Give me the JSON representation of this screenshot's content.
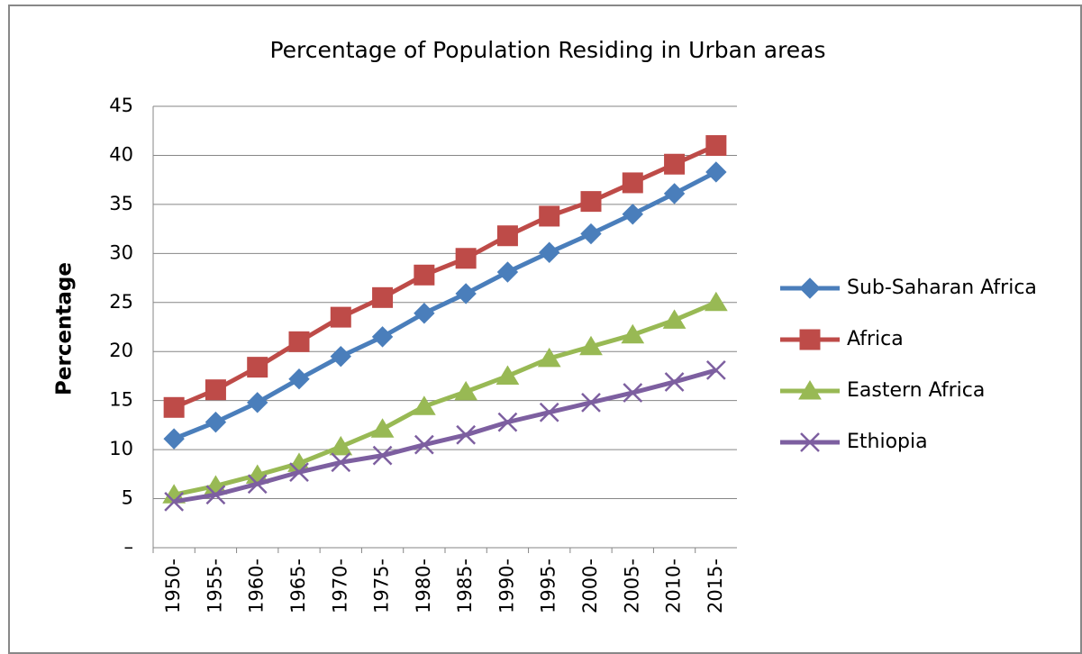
{
  "chart_data": {
    "type": "line",
    "title": "Percentage of Population Residing in Urban areas",
    "y_label": "Percentage",
    "categories": [
      "1950-",
      "1955-",
      "1960-",
      "1965-",
      "1970-",
      "1975-",
      "1980-",
      "1985-",
      "1990-",
      "1995-",
      "2000-",
      "2005-",
      "2010-",
      "2015-"
    ],
    "series": [
      {
        "name": "Sub-Saharan Africa",
        "color": "#4a7ebb",
        "marker": "diamond",
        "values": [
          11.1,
          12.8,
          14.8,
          17.2,
          19.5,
          21.5,
          23.9,
          25.9,
          28.1,
          30.1,
          32.0,
          34.0,
          36.1,
          38.3
        ]
      },
      {
        "name": "Africa",
        "color": "#be4b48",
        "marker": "square",
        "values": [
          14.3,
          16.1,
          18.4,
          21.0,
          23.5,
          25.5,
          27.8,
          29.5,
          31.8,
          33.8,
          35.3,
          37.2,
          39.1,
          41.0
        ]
      },
      {
        "name": "Eastern Africa",
        "color": "#98b954",
        "marker": "triangle",
        "values": [
          5.4,
          6.3,
          7.4,
          8.6,
          10.3,
          12.1,
          14.4,
          15.9,
          17.5,
          19.3,
          20.5,
          21.7,
          23.2,
          25.0
        ]
      },
      {
        "name": "Ethiopia",
        "color": "#7d5fa0",
        "marker": "x",
        "values": [
          4.7,
          5.4,
          6.5,
          7.7,
          8.7,
          9.4,
          10.5,
          11.5,
          12.8,
          13.8,
          14.8,
          15.8,
          16.9,
          18.1
        ]
      }
    ],
    "ylim": [
      0,
      45
    ],
    "yticks": [
      {
        "value": 0,
        "label": "–"
      },
      5,
      10,
      15,
      20,
      25,
      30,
      35,
      40,
      45
    ],
    "grid": true,
    "legend": "right"
  }
}
